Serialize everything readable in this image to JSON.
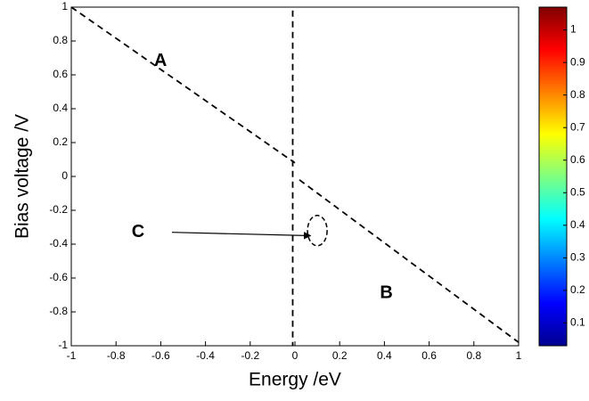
{
  "chart_data": {
    "type": "contour",
    "xlabel": "Energy /eV",
    "ylabel": "Bias voltage /V",
    "xlim": [
      -1,
      1
    ],
    "xticks": [
      -1,
      -0.8,
      -0.6,
      -0.4,
      -0.2,
      0,
      0.2,
      0.4,
      0.6,
      0.8,
      1
    ],
    "ylim": [
      -1,
      1
    ],
    "yticks": [
      -1,
      -0.8,
      -0.6,
      -0.4,
      -0.2,
      0,
      0.2,
      0.4,
      0.6,
      0.8,
      1
    ],
    "colorbar": {
      "lim": [
        0.03,
        1.07
      ],
      "ticks": [
        0.1,
        0.2,
        0.3,
        0.4,
        0.5,
        0.6,
        0.7,
        0.8,
        0.9,
        1
      ]
    },
    "annotations": [
      "A",
      "B",
      "C"
    ]
  }
}
